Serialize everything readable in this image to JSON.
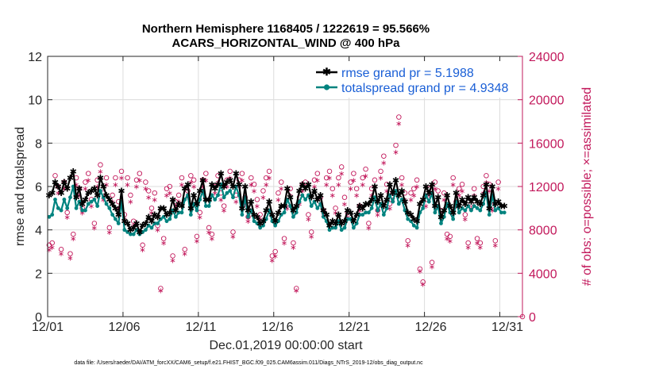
{
  "chart_data": {
    "type": "line",
    "title_line1": "Northern Hemisphere 1168405 / 1222619 = 95.566%",
    "title_line2": "ACARS_HORIZONTAL_WIND @ 400 hPa",
    "xlabel": "Dec.01,2019 00:00:00 start",
    "ylabel_left": "rmse and totalspread",
    "ylabel_right": "# of obs: o=possible; ×=assimilated",
    "footnote": "data file: /Users/raeder/DAI/ATM_forcXX/CAM6_setup/f.e21.FHIST_BGC.f09_025.CAM6assim.011/Diags_NTrS_2019-12/obs_diag_output.nc",
    "ylim_left": [
      0,
      12
    ],
    "ylim_right": [
      0,
      24000
    ],
    "xlim_days": [
      0,
      31.5
    ],
    "grid": true,
    "x_tick_labels": [
      "12/01",
      "12/06",
      "12/11",
      "12/16",
      "12/21",
      "12/26",
      "12/31"
    ],
    "y_left_tick_labels": [
      "0",
      "2",
      "4",
      "6",
      "8",
      "10",
      "12"
    ],
    "y_right_tick_labels": [
      "0",
      "4000",
      "8000",
      "12000",
      "16000",
      "20000",
      "24000"
    ],
    "legend": {
      "placement": "top-right",
      "entries": [
        "rmse grand pr = 5.1988",
        "totalspread grand pr = 4.9348"
      ]
    },
    "colors": {
      "rmse": "#000000",
      "spread": "#00837f",
      "obs": "#c2185b"
    },
    "series": [
      {
        "name": "rmse",
        "values": [
          5.6,
          5.7,
          6.2,
          6.0,
          5.7,
          6.2,
          5.9,
          6.4,
          6.7,
          5.5,
          5.9,
          5.2,
          5.4,
          5.7,
          5.8,
          5.9,
          5.6,
          6.4,
          6.0,
          5.6,
          5.4,
          5.2,
          5.0,
          4.7,
          5.8,
          4.4,
          4.3,
          4.0,
          4.1,
          4.3,
          3.9,
          4.2,
          4.3,
          4.6,
          4.4,
          4.7,
          4.6,
          5.0,
          5.0,
          4.7,
          4.8,
          5.4,
          4.9,
          5.2,
          5.1,
          5.9,
          6.1,
          5.0,
          5.6,
          5.2,
          5.8,
          6.3,
          5.4,
          5.4,
          6.1,
          5.9,
          6.1,
          6.6,
          6.0,
          6.2,
          6.3,
          6.0,
          6.6,
          6.1,
          5.0,
          6.0,
          4.9,
          5.3,
          4.7,
          4.6,
          4.3,
          4.4,
          4.9,
          5.3,
          4.7,
          4.4,
          4.8,
          5.1,
          5.1,
          5.9,
          5.5,
          4.9,
          5.1,
          5.8,
          6.1,
          5.9,
          6.1,
          5.5,
          5.8,
          5.4,
          5.6,
          4.9,
          4.7,
          4.2,
          4.4,
          4.3,
          4.7,
          4.3,
          4.4,
          4.9,
          4.8,
          4.4,
          4.7,
          5.1,
          5.0,
          5.2,
          5.2,
          5.4,
          6.0,
          5.3,
          5.6,
          5.1,
          5.4,
          6.1,
          5.7,
          6.3,
          5.6,
          5.8,
          5.3,
          4.8,
          4.7,
          4.5,
          4.4,
          5.2,
          5.4,
          6.0,
          5.7,
          6.1,
          5.1,
          5.5,
          4.6,
          4.9,
          5.6,
          5.1,
          4.8,
          5.7,
          5.1,
          5.4,
          5.2,
          5.5,
          5.3,
          5.5,
          5.3,
          5.2,
          5.6,
          6.1,
          5.0,
          6.0,
          5.2,
          5.3,
          5.1,
          5.1
        ]
      },
      {
        "name": "totalspread",
        "values": [
          4.6,
          4.7,
          5.4,
          5.0,
          4.9,
          5.4,
          5.0,
          5.5,
          6.0,
          5.0,
          5.3,
          4.9,
          4.9,
          5.2,
          5.3,
          5.4,
          5.1,
          5.8,
          5.5,
          5.2,
          5.0,
          4.7,
          4.5,
          4.3,
          5.3,
          4.0,
          3.9,
          3.8,
          3.8,
          4.0,
          3.8,
          3.9,
          4.0,
          4.2,
          4.1,
          4.3,
          4.3,
          4.5,
          4.6,
          4.4,
          4.5,
          4.9,
          4.6,
          4.8,
          4.8,
          5.4,
          5.6,
          4.7,
          5.2,
          4.9,
          5.4,
          5.8,
          5.1,
          5.1,
          5.6,
          5.4,
          5.6,
          6.1,
          5.5,
          5.7,
          5.8,
          5.5,
          6.0,
          5.6,
          4.7,
          5.5,
          4.6,
          4.9,
          4.4,
          4.3,
          4.1,
          4.2,
          4.5,
          4.9,
          4.4,
          4.2,
          4.4,
          4.7,
          4.8,
          5.4,
          5.1,
          4.6,
          4.8,
          5.3,
          5.6,
          5.4,
          5.6,
          5.1,
          5.3,
          5.0,
          5.2,
          4.6,
          4.4,
          4.0,
          4.1,
          4.1,
          4.4,
          4.0,
          4.1,
          4.5,
          4.5,
          4.1,
          4.3,
          4.7,
          4.7,
          4.8,
          4.8,
          5.0,
          5.5,
          4.9,
          5.2,
          4.7,
          5.0,
          5.6,
          5.3,
          5.8,
          5.2,
          5.4,
          4.9,
          4.5,
          4.4,
          4.2,
          4.1,
          4.8,
          5.0,
          5.6,
          5.3,
          5.7,
          4.8,
          5.1,
          4.3,
          4.6,
          5.2,
          4.8,
          4.5,
          5.3,
          4.8,
          5.0,
          4.9,
          5.1,
          4.9,
          5.1,
          5.0,
          4.9,
          5.2,
          5.7,
          4.7,
          5.6,
          4.9,
          5.0,
          4.8,
          4.8
        ]
      },
      {
        "name": "obs_possible",
        "values": [
          6600,
          6800,
          13000,
          12000,
          6200,
          12400,
          9600,
          5800,
          7600,
          12800,
          11800,
          10000,
          12400,
          13200,
          10800,
          8600,
          12600,
          14000,
          11400,
          12800,
          8200,
          11200,
          12800,
          10600,
          13400,
          9400,
          12800,
          11200,
          8800,
          12600,
          13200,
          6600,
          12400,
          11600,
          10000,
          11400,
          8400,
          2600,
          7200,
          11800,
          12000,
          5600,
          10600,
          11200,
          12800,
          6200,
          11600,
          13000,
          12600,
          7400,
          9600,
          12600,
          13200,
          8200,
          7600,
          12000,
          13000,
          11400,
          10200,
          12600,
          13400,
          7800,
          11200,
          12600,
          13200,
          11000,
          9200,
          12800,
          12200,
          10800,
          9400,
          11600,
          12800,
          13400,
          5600,
          6000,
          11400,
          12400,
          7200,
          10400,
          11800,
          6800,
          2600,
          11000,
          12200,
          12400,
          9400,
          7800,
          12600,
          13200,
          11000,
          9800,
          12800,
          13400,
          11800,
          10000,
          12800,
          13800,
          11000,
          9600,
          12400,
          13200,
          11800,
          10200,
          12800,
          13600,
          8600,
          11800,
          12600,
          9800,
          13400,
          14800,
          12200,
          10400,
          11400,
          15800,
          18400,
          12800,
          11400,
          7000,
          11400,
          11800,
          12600,
          4400,
          3200,
          10800,
          11800,
          5000,
          12400,
          11600,
          9800,
          11400,
          7600,
          7400,
          12800,
          10600,
          11800,
          12200,
          9400,
          6800,
          10400,
          11800,
          7200,
          6800,
          12000,
          13000,
          12200,
          10200,
          7000,
          12400
        ]
      },
      {
        "name": "obs_assimilated",
        "values": [
          6200,
          6400,
          12400,
          11400,
          5800,
          11800,
          9200,
          5400,
          7200,
          12200,
          11200,
          9600,
          11800,
          12600,
          10200,
          8200,
          12000,
          13400,
          10800,
          12200,
          7800,
          10600,
          12200,
          10000,
          12800,
          9000,
          12200,
          10600,
          8400,
          12000,
          12600,
          6200,
          11800,
          11000,
          9600,
          10800,
          8000,
          2400,
          6800,
          11200,
          11400,
          5200,
          10200,
          10600,
          12200,
          5800,
          11000,
          12400,
          12000,
          7000,
          9200,
          12000,
          12600,
          7800,
          7200,
          11400,
          12400,
          10800,
          9800,
          12000,
          12800,
          7400,
          10600,
          12000,
          12600,
          10400,
          8800,
          12200,
          11600,
          10200,
          9000,
          11000,
          12200,
          12800,
          5200,
          5600,
          10800,
          11800,
          6800,
          10000,
          11200,
          6400,
          2400,
          10400,
          11600,
          11800,
          9000,
          7400,
          12000,
          12600,
          10400,
          9400,
          12200,
          12800,
          11200,
          9600,
          12200,
          13200,
          10400,
          9200,
          11800,
          12600,
          11200,
          9800,
          12200,
          13000,
          8200,
          11200,
          12000,
          9400,
          12800,
          14200,
          11600,
          10000,
          10800,
          15200,
          17800,
          12200,
          10800,
          6600,
          10800,
          11200,
          12000,
          4200,
          3000,
          10200,
          11200,
          4600,
          11800,
          11000,
          9400,
          10800,
          7200,
          7000,
          12200,
          10200,
          11200,
          11600,
          9000,
          6400,
          10000,
          11200,
          6800,
          6400,
          11400,
          12400,
          11600,
          9800,
          6600,
          11800
        ]
      }
    ]
  }
}
